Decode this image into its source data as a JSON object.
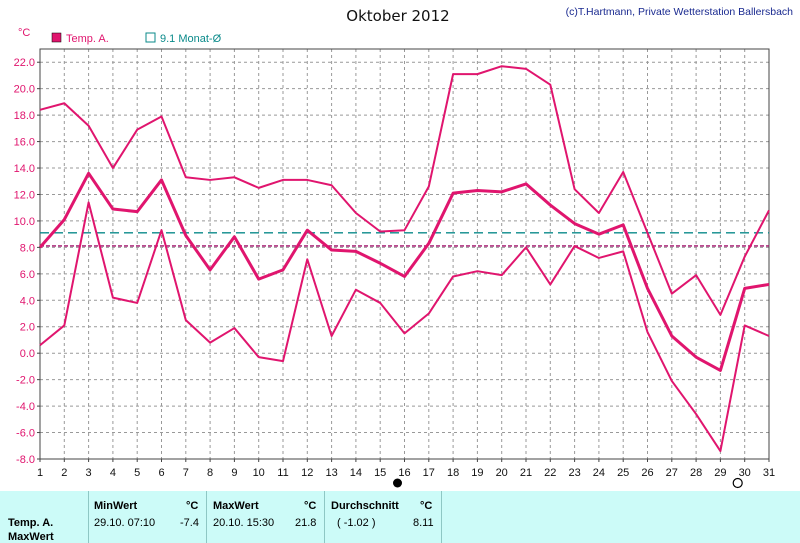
{
  "chart_data": {
    "type": "line",
    "title": "Oktober 2012",
    "copyright": "(c)T.Hartmann, Private Wetterstation Ballersbach",
    "unit": "°C",
    "legend": [
      {
        "name": "Temp. A.",
        "color": "#e0156e",
        "marker": "filled-square"
      },
      {
        "name": "9.1 Monat-Ø",
        "color": "#0a8a8a",
        "marker": "open-square"
      }
    ],
    "ylim": [
      -8,
      23
    ],
    "yticks": [
      "-8.0",
      "-6.0",
      "-4.0",
      "-2.0",
      "0.0",
      "2.0",
      "4.0",
      "6.0",
      "8.0",
      "10.0",
      "12.0",
      "14.0",
      "16.0",
      "18.0",
      "20.0",
      "22.0"
    ],
    "x": [
      1,
      2,
      3,
      4,
      5,
      6,
      7,
      8,
      9,
      10,
      11,
      12,
      13,
      14,
      15,
      16,
      17,
      18,
      19,
      20,
      21,
      22,
      23,
      24,
      25,
      26,
      27,
      28,
      29,
      30,
      31
    ],
    "series": [
      {
        "role": "max",
        "values": [
          18.4,
          18.9,
          17.2,
          14.0,
          16.9,
          17.9,
          13.3,
          13.1,
          13.3,
          12.5,
          13.1,
          13.1,
          12.7,
          10.6,
          9.2,
          9.3,
          12.6,
          21.1,
          21.1,
          21.7,
          21.5,
          20.3,
          12.4,
          10.6,
          13.7,
          9.1,
          4.5,
          5.9,
          2.9,
          7.3,
          10.8
        ]
      },
      {
        "role": "avg",
        "values": [
          8.0,
          10.1,
          13.6,
          10.9,
          10.7,
          13.1,
          8.9,
          6.3,
          8.8,
          5.6,
          6.3,
          9.3,
          7.8,
          7.7,
          6.8,
          5.8,
          8.3,
          12.1,
          12.3,
          12.2,
          12.8,
          11.2,
          9.8,
          9.0,
          9.7,
          4.9,
          1.3,
          -0.3,
          -1.3,
          4.9,
          5.2
        ]
      },
      {
        "role": "min",
        "values": [
          0.6,
          2.1,
          11.4,
          4.2,
          3.8,
          9.3,
          2.5,
          0.8,
          1.9,
          -0.3,
          -0.6,
          7.1,
          1.3,
          4.8,
          3.8,
          1.5,
          3.0,
          5.8,
          6.2,
          5.9,
          8.0,
          5.2,
          8.1,
          7.2,
          7.7,
          1.6,
          -2.1,
          -4.6,
          -7.4,
          2.1,
          1.3
        ]
      }
    ],
    "reference_lines": [
      {
        "name": "monthly-average-line",
        "value": 9.1,
        "color": "#0a8a8a"
      },
      {
        "name": "temperature-average-line",
        "value": 8.11,
        "color": "#a0106a"
      }
    ],
    "moon_markers": [
      {
        "x": 16,
        "phase": "new-moon"
      },
      {
        "x": 30,
        "phase": "full-moon"
      }
    ],
    "grid": true
  },
  "footer": {
    "row_label_1": "Temp. A.",
    "row_label_2": "MaxWert",
    "min_header": "MinWert",
    "min_unit": "°C",
    "min_time": "29.10.  07:10",
    "min_value": "-7.4",
    "max_header": "MaxWert",
    "max_unit": "°C",
    "max_time": "20.10.  15:30",
    "max_value": "21.8",
    "avg_header": "Durchschnitt",
    "avg_unit": "°C",
    "avg_note": "( -1.02 )",
    "avg_value": "8.11"
  }
}
